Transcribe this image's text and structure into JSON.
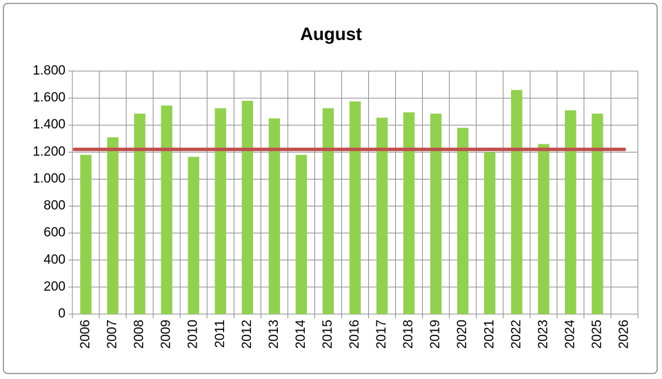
{
  "chart_data": {
    "type": "bar",
    "title": "August",
    "categories": [
      "2006",
      "2007",
      "2008",
      "2009",
      "2010",
      "2011",
      "2012",
      "2013",
      "2014",
      "2015",
      "2016",
      "2017",
      "2018",
      "2019",
      "2020",
      "2021",
      "2022",
      "2023",
      "2024",
      "2025",
      "2026"
    ],
    "values": [
      1180,
      1310,
      1485,
      1545,
      1165,
      1525,
      1580,
      1450,
      1180,
      1525,
      1575,
      1455,
      1495,
      1485,
      1380,
      1200,
      1660,
      1260,
      1510,
      1485,
      null
    ],
    "color": "#92d050",
    "average_line": {
      "value": 1220,
      "color": "#c0504d"
    },
    "ylim": [
      0,
      1800
    ],
    "yticks": [
      0,
      200,
      400,
      600,
      800,
      {
        "value": 1000,
        "label": "1.000"
      },
      {
        "value": 1200,
        "label": "1.200"
      },
      {
        "value": 1400,
        "label": "1.400"
      },
      {
        "value": 1600,
        "label": "1.600"
      },
      {
        "value": 1800,
        "label": "1.800"
      }
    ],
    "grid": true
  }
}
